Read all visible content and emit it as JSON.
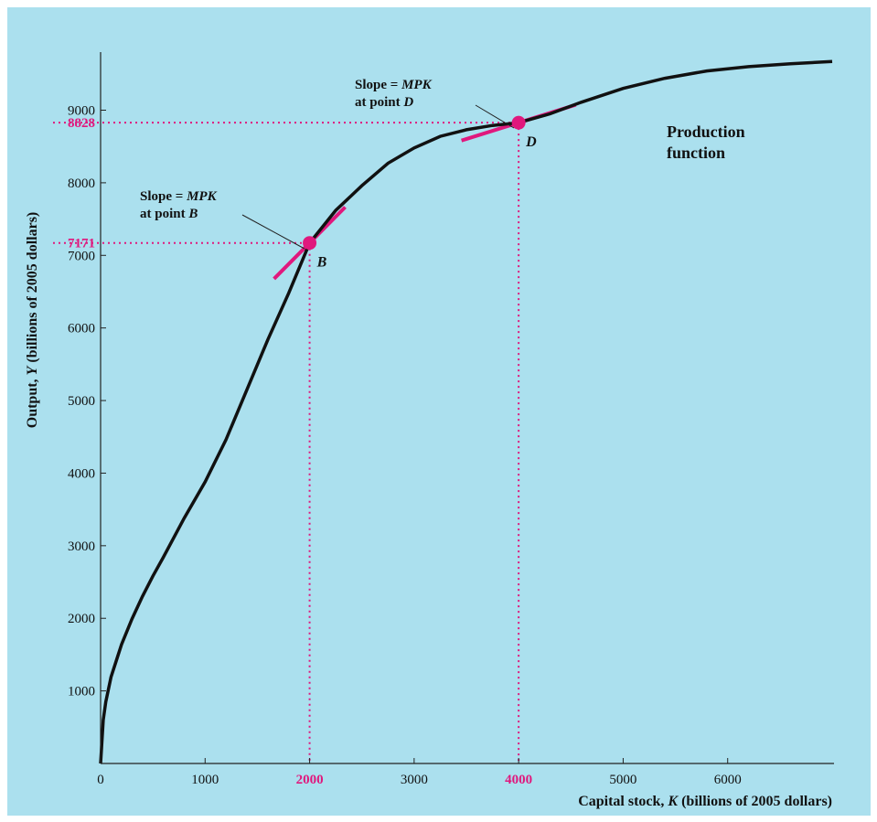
{
  "chart_data": {
    "type": "line",
    "xlabel_main": "Capital stock, ",
    "xlabel_var": "K",
    "xlabel_rest": " (billions of 2005 dollars)",
    "ylabel_main": "Output, ",
    "ylabel_var": "Y",
    "ylabel_rest": " (billions of 2005 dollars)",
    "xlim": [
      0,
      7000
    ],
    "ylim": [
      0,
      9800
    ],
    "x_ticks": [
      {
        "value": 0,
        "label": "0",
        "highlight": false
      },
      {
        "value": 1000,
        "label": "1000",
        "highlight": false
      },
      {
        "value": 2000,
        "label": "2000",
        "highlight": true
      },
      {
        "value": 3000,
        "label": "3000",
        "highlight": false
      },
      {
        "value": 4000,
        "label": "4000",
        "highlight": true
      },
      {
        "value": 5000,
        "label": "5000",
        "highlight": false
      },
      {
        "value": 6000,
        "label": "6000",
        "highlight": false
      }
    ],
    "y_ticks": [
      {
        "value": 1000,
        "label": "1000",
        "highlight": false
      },
      {
        "value": 2000,
        "label": "2000",
        "highlight": false
      },
      {
        "value": 3000,
        "label": "3000",
        "highlight": false
      },
      {
        "value": 4000,
        "label": "4000",
        "highlight": false
      },
      {
        "value": 5000,
        "label": "5000",
        "highlight": false
      },
      {
        "value": 6000,
        "label": "6000",
        "highlight": false
      },
      {
        "value": 7000,
        "label": "7000",
        "highlight": false
      },
      {
        "value": 7171,
        "label": "7171",
        "highlight": true
      },
      {
        "value": 8000,
        "label": "8000",
        "highlight": false
      },
      {
        "value": 8828,
        "label": "8828",
        "highlight": true
      },
      {
        "value": 9000,
        "label": "9000",
        "highlight": false
      }
    ],
    "series": [
      {
        "x": [
          0,
          25,
          50,
          100,
          200,
          300,
          400,
          500,
          600,
          800,
          1000,
          1200,
          1400,
          1600,
          1800,
          2000,
          2250,
          2500,
          2750,
          3000,
          3250,
          3500,
          3750,
          4000,
          4300,
          4600,
          5000,
          5400,
          5800,
          6200,
          6600,
          7000
        ],
        "y": [
          0,
          600,
          850,
          1190,
          1640,
          1990,
          2300,
          2580,
          2840,
          3380,
          3880,
          4460,
          5150,
          5840,
          6480,
          7171,
          7620,
          7960,
          8270,
          8480,
          8640,
          8730,
          8790,
          8828,
          8950,
          9110,
          9300,
          9440,
          9540,
          9600,
          9640,
          9670
        ]
      }
    ],
    "points": [
      {
        "label": "B",
        "x": 2000,
        "y": 7171,
        "slope": 1.45
      },
      {
        "label": "D",
        "x": 4000,
        "y": 8828,
        "slope": 0.45
      }
    ],
    "annotations": [
      {
        "line1": "Slope = ",
        "line1_italic": "MPK",
        "line2": "at point ",
        "line2_italic": "B"
      },
      {
        "line1": "Slope = ",
        "line1_italic": "MPK",
        "line2": "at point ",
        "line2_italic": "D"
      }
    ],
    "curve_label": [
      "Production",
      "function"
    ],
    "colors": {
      "background": "#abe0ee",
      "curve": "#111111",
      "highlight": "#e0187d",
      "axis": "#222222"
    }
  }
}
